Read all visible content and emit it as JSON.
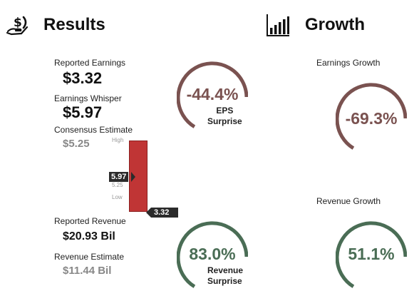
{
  "results": {
    "title": "Results",
    "icon": "money-hand-icon",
    "reported_earnings": {
      "label": "Reported Earnings",
      "value": "$3.32"
    },
    "earnings_whisper": {
      "label": "Earnings Whisper",
      "value": "$5.97"
    },
    "consensus_estimate": {
      "label": "Consensus Estimate",
      "value": "$5.25"
    },
    "reported_revenue": {
      "label": "Reported Revenue",
      "value": "$20.93 Bil"
    },
    "revenue_estimate": {
      "label": "Revenue Estimate",
      "value": "$11.44 Bil"
    }
  },
  "range_bar": {
    "high_label": "High",
    "low_label": "Low",
    "whisper_marker": "5.97",
    "consensus_marker": "5.25",
    "actual_marker": "3.32",
    "bar_color": "#c03535",
    "whisper_value": 5.97,
    "consensus_value": 5.25,
    "actual_value": 3.32
  },
  "eps_surprise": {
    "value": "-44.4%",
    "caption_line1": "EPS",
    "caption_line2": "Surprise",
    "color": "#7a5250"
  },
  "revenue_surprise": {
    "value": "83.0%",
    "caption_line1": "Revenue",
    "caption_line2": "Surprise",
    "color": "#4a6d55"
  },
  "growth": {
    "title": "Growth",
    "icon": "bar-chart-icon",
    "earnings_growth": {
      "label": "Earnings Growth",
      "value": "-69.3%",
      "color": "#7a5250"
    },
    "revenue_growth": {
      "label": "Revenue Growth",
      "value": "51.1%",
      "color": "#4a6d55"
    }
  }
}
